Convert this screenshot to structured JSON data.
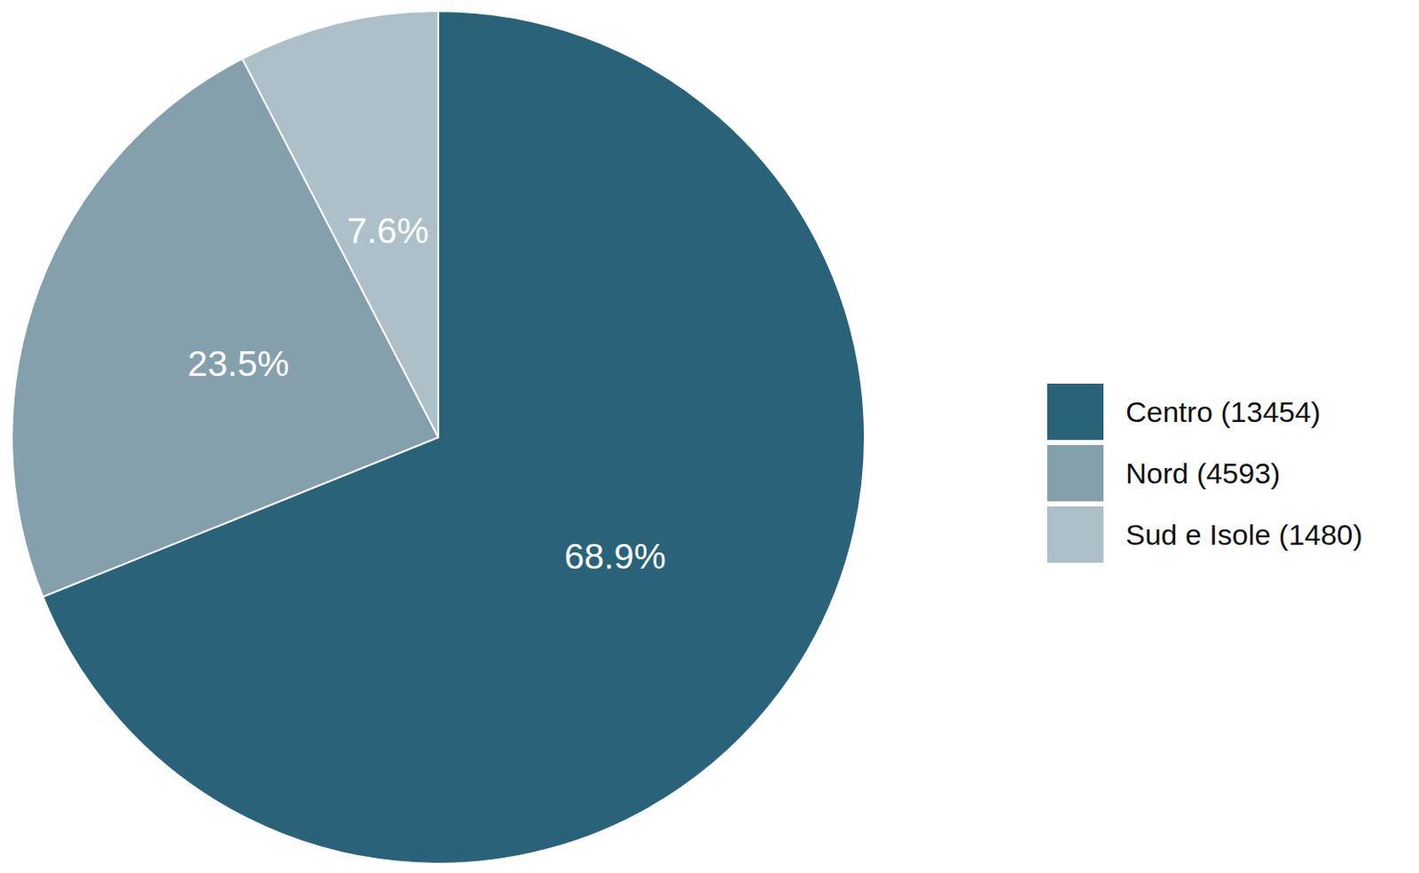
{
  "chart_data": {
    "type": "pie",
    "categories": [
      "Centro (13454)",
      "Nord (4593)",
      "Sud e Isole (1480)"
    ],
    "values": [
      68.9,
      23.5,
      7.6
    ],
    "value_labels": [
      "68.9%",
      "23.5%",
      "7.6%"
    ],
    "colors": [
      "#2a6379",
      "#85a0ad",
      "#adc0ca"
    ],
    "data_labels": true,
    "legend": "right"
  }
}
